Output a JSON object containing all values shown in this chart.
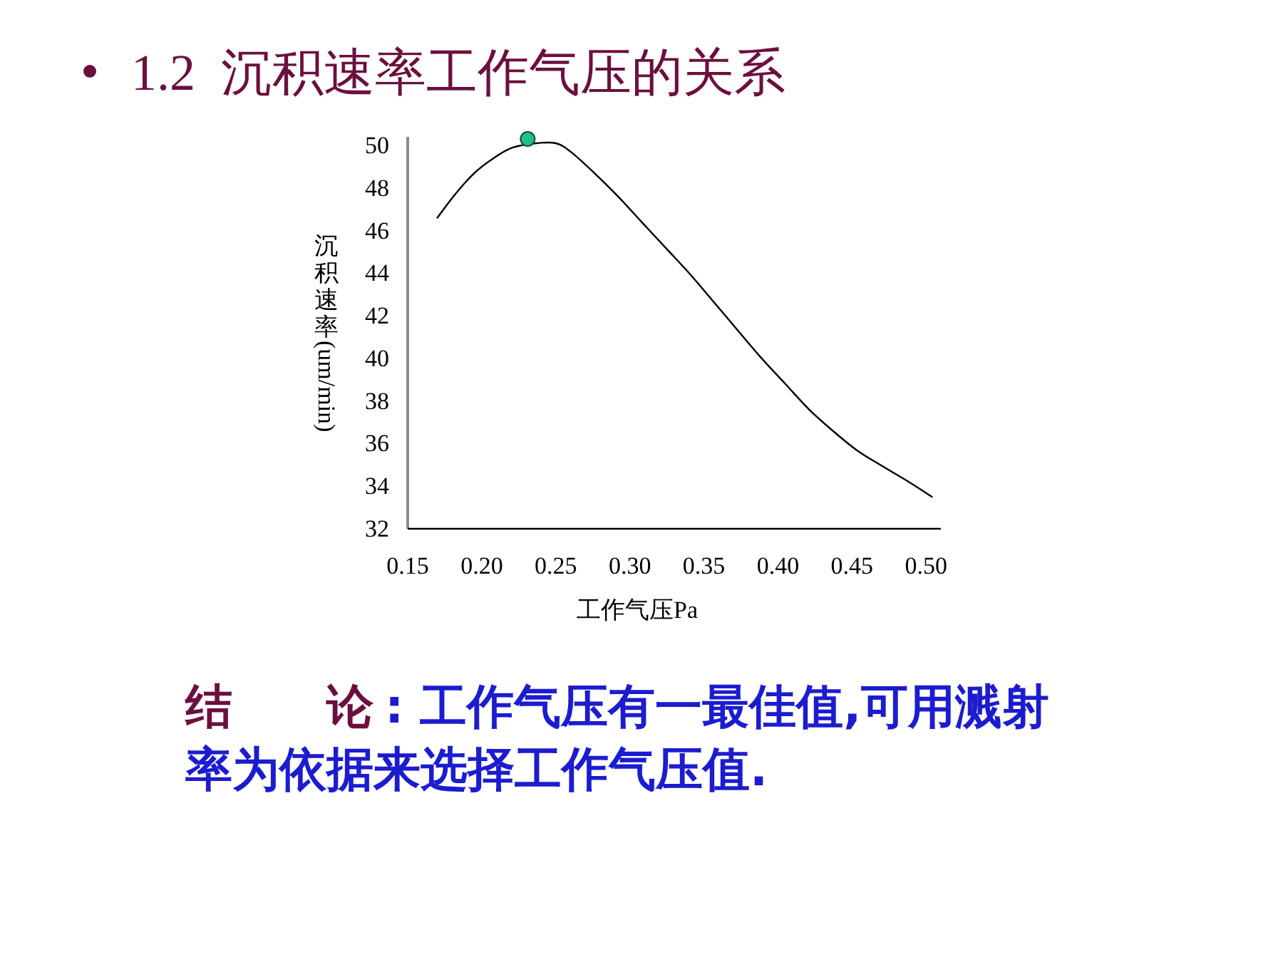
{
  "chart_data": {
    "type": "line",
    "title": "1.2  沉积速率工作气压的关系",
    "xlabel": "工作气压Pa",
    "ylabel": "沉积速率(um/min)",
    "annotations": [
      "结　　论",
      ": 工作气压有一最佳值,可用溅射率为依据来选择工作气压值."
    ],
    "xlim": [
      0.15,
      0.51
    ],
    "xticks": [
      {
        "value": 0.15,
        "label": "0.15"
      },
      {
        "value": 0.2,
        "label": "0.20"
      },
      {
        "value": 0.25,
        "label": "0.25"
      },
      {
        "value": 0.3,
        "label": "0.30"
      },
      {
        "value": 0.35,
        "label": "0.35"
      },
      {
        "value": 0.4,
        "label": "0.40"
      },
      {
        "value": 0.45,
        "label": "0.45"
      },
      {
        "value": 0.5,
        "label": "0.50"
      }
    ],
    "ylim": [
      32,
      50.4
    ],
    "yticks": [
      32,
      34,
      36,
      38,
      40,
      42,
      44,
      46,
      48,
      50
    ],
    "series": [
      {
        "type": "line",
        "color": "#000000",
        "x": [
          0.17,
          0.182,
          0.195,
          0.208,
          0.221,
          0.237,
          0.25,
          0.26,
          0.276,
          0.292,
          0.308,
          0.324,
          0.34,
          0.356,
          0.373,
          0.389,
          0.405,
          0.421,
          0.437,
          0.453,
          0.469,
          0.486,
          0.504
        ],
        "values": [
          46.6,
          47.7,
          48.7,
          49.4,
          49.9,
          50.1,
          50.1,
          49.7,
          48.7,
          47.6,
          46.4,
          45.2,
          44.0,
          42.7,
          41.3,
          40.0,
          38.8,
          37.6,
          36.6,
          35.7,
          35.0,
          34.3,
          33.5
        ]
      },
      {
        "type": "scatter",
        "color": "#1fbf8f",
        "marker": "circle",
        "x": [
          0.231
        ],
        "values": [
          50.3
        ]
      }
    ]
  }
}
